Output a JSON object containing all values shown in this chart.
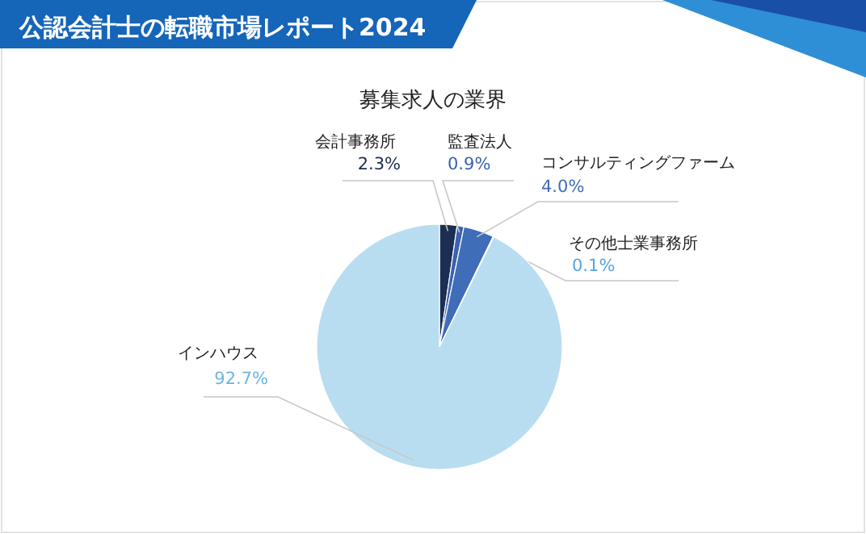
{
  "chart_data": {
    "type": "pie",
    "title": "公認会計士の転職市場レポート2024",
    "subtitle": "募集求人の業界",
    "categories": [
      "会計事務所",
      "監査法人",
      "コンサルティングファーム",
      "その他士業事務所",
      "インハウス"
    ],
    "values": [
      2.3,
      0.9,
      4.0,
      0.1,
      92.7
    ],
    "value_labels": [
      "2.3%",
      "0.9%",
      "4.0%",
      "0.1%",
      "92.7%"
    ],
    "colors": [
      "#1c2e52",
      "#3a62b0",
      "#3f6db8",
      "#5aa4dc",
      "#b9ddf0"
    ]
  }
}
